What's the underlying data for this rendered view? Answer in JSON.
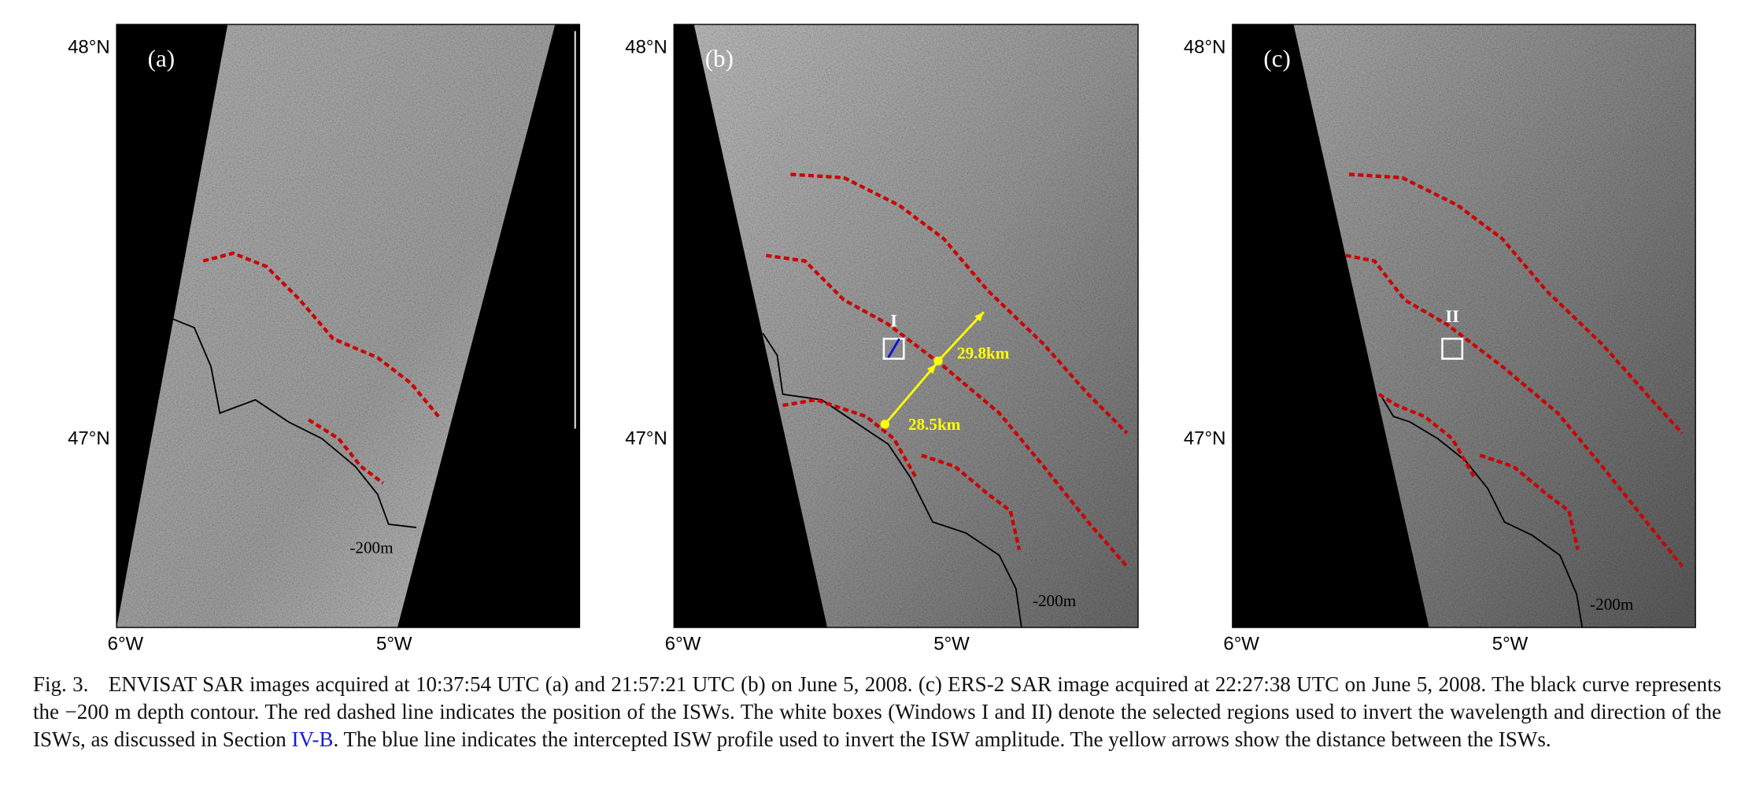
{
  "figure": {
    "panels": [
      {
        "label": "(a)",
        "lat_labels": [
          "48°N",
          "47°N"
        ],
        "lon_labels": [
          "6°W",
          "5°W"
        ],
        "annotations": [
          "-200m"
        ]
      },
      {
        "label": "(b)",
        "lat_labels": [
          "48°N",
          "47°N"
        ],
        "lon_labels": [
          "6°W",
          "5°W"
        ],
        "annotations": [
          "-200m",
          "I",
          "29.8km",
          "28.5km"
        ]
      },
      {
        "label": "(c)",
        "lat_labels": [
          "48°N",
          "47°N"
        ],
        "lon_labels": [
          "6°W",
          "5°W"
        ],
        "annotations": [
          "-200m",
          "II"
        ]
      }
    ],
    "caption": {
      "label": "Fig. 3.",
      "text_before": "ENVISAT SAR images acquired at 10:37:54 UTC (a) and 21:57:21 UTC (b) on June 5, 2008. (c) ERS-2 SAR image acquired at 22:27:38 UTC on June 5, 2008. The black curve represents the −200 m depth contour. The red dashed line indicates the position of the ISWs. The white boxes (Windows I and II) denote the selected regions used to invert the wavelength and direction of the ISWs, as discussed in Section",
      "link": "IV-B",
      "text_after": ". The blue line indicates the intercepted ISW profile used to invert the ISW amplitude. The yellow arrows show the distance between the ISWs."
    }
  }
}
